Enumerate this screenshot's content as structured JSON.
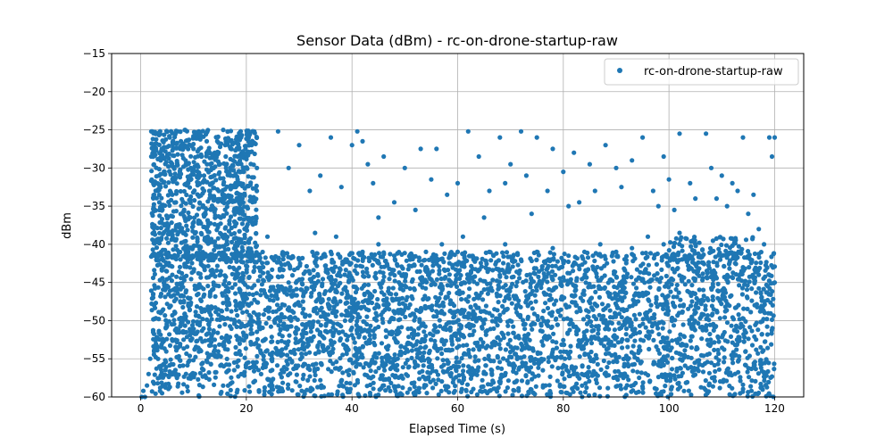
{
  "chart_data": {
    "type": "scatter",
    "title": "Sensor Data (dBm) - rc-on-drone-startup-raw",
    "xlabel": "Elapsed Time (s)",
    "ylabel": "dBm",
    "xlim": [
      -5.5,
      125.5
    ],
    "ylim": [
      -60,
      -15
    ],
    "x_ticks": [
      0,
      20,
      40,
      60,
      80,
      100,
      120
    ],
    "y_ticks": [
      -60,
      -55,
      -50,
      -45,
      -40,
      -35,
      -30,
      -25,
      -20,
      -15
    ],
    "x_tick_labels": [
      "0",
      "20",
      "40",
      "60",
      "80",
      "100",
      "120"
    ],
    "y_tick_labels": [
      "−60",
      "−55",
      "−50",
      "−45",
      "−40",
      "−35",
      "−30",
      "−25",
      "−20",
      "−15"
    ],
    "grid": true,
    "legend": {
      "position": "top-right",
      "entries": [
        "rc-on-drone-startup-raw"
      ]
    },
    "series": [
      {
        "name": "rc-on-drone-startup-raw",
        "color": "#1f77b4",
        "points": [
          [
            0.2,
            -60
          ],
          [
            0.5,
            -59.2
          ],
          [
            0.8,
            -60
          ],
          [
            1.2,
            -58.5
          ],
          [
            1.5,
            -57
          ],
          [
            1.8,
            -55
          ],
          [
            2.0,
            -25.2
          ],
          [
            2.2,
            -25.2
          ],
          [
            2.5,
            -27.2
          ],
          [
            2.8,
            -26.8
          ],
          [
            3.2,
            -33
          ],
          [
            3.5,
            -31
          ],
          [
            3.8,
            -29
          ],
          [
            4.0,
            -27.5
          ],
          [
            4.5,
            -30.5
          ],
          [
            5.0,
            -28.5
          ],
          [
            5.5,
            -26
          ],
          [
            6.0,
            -33.5
          ],
          [
            6.5,
            -31.5
          ],
          [
            7.0,
            -25.2
          ],
          [
            7.5,
            -27.5
          ],
          [
            8.0,
            -26.8
          ],
          [
            8.5,
            -29
          ],
          [
            9.0,
            -32
          ],
          [
            9.5,
            -30
          ],
          [
            10.0,
            -27.5
          ],
          [
            10.5,
            -26
          ],
          [
            11.0,
            -25.2
          ],
          [
            11.5,
            -28.5
          ],
          [
            12.0,
            -31
          ],
          [
            12.5,
            -26.5
          ],
          [
            13.0,
            -33
          ],
          [
            13.5,
            -30
          ],
          [
            14.0,
            -28
          ],
          [
            14.5,
            -26.5
          ],
          [
            15.0,
            -29.5
          ],
          [
            15.5,
            -34
          ],
          [
            16.0,
            -27
          ],
          [
            16.5,
            -25.2
          ],
          [
            17.0,
            -31
          ],
          [
            17.5,
            -29
          ],
          [
            18.0,
            -32.5
          ],
          [
            18.5,
            -27.5
          ],
          [
            19.0,
            -26
          ],
          [
            19.5,
            -30.5
          ],
          [
            20.0,
            -28.5
          ],
          [
            20.5,
            -25.8
          ],
          [
            21.0,
            -27
          ],
          [
            21.5,
            -25.2
          ],
          [
            22.0,
            -30
          ],
          [
            26.0,
            -25.2
          ],
          [
            28.0,
            -30
          ],
          [
            30.0,
            -27
          ],
          [
            32.0,
            -33
          ],
          [
            34.0,
            -31
          ],
          [
            36.0,
            -26
          ],
          [
            37.0,
            -39
          ],
          [
            38.0,
            -32.5
          ],
          [
            40.0,
            -27
          ],
          [
            41.0,
            -25.2
          ],
          [
            42.0,
            -26.5
          ],
          [
            43.0,
            -29.5
          ],
          [
            44.0,
            -32
          ],
          [
            45.0,
            -36.5
          ],
          [
            46.0,
            -28.5
          ],
          [
            48.0,
            -34.5
          ],
          [
            50.0,
            -30
          ],
          [
            52.0,
            -35.5
          ],
          [
            53.0,
            -27.5
          ],
          [
            55.0,
            -31.5
          ],
          [
            56.0,
            -27.5
          ],
          [
            58.0,
            -33.5
          ],
          [
            60.0,
            -32
          ],
          [
            61.0,
            -39
          ],
          [
            62.0,
            -25.2
          ],
          [
            64.0,
            -28.5
          ],
          [
            65.0,
            -36.5
          ],
          [
            66.0,
            -33
          ],
          [
            68.0,
            -26
          ],
          [
            69.0,
            -32
          ],
          [
            70.0,
            -29.5
          ],
          [
            72.0,
            -25.2
          ],
          [
            73.0,
            -31
          ],
          [
            74.0,
            -36
          ],
          [
            75.0,
            -26
          ],
          [
            77.0,
            -33
          ],
          [
            78.0,
            -27.5
          ],
          [
            80.0,
            -30.5
          ],
          [
            81.0,
            -35
          ],
          [
            82.0,
            -28
          ],
          [
            83.0,
            -34.5
          ],
          [
            85.0,
            -29.5
          ],
          [
            86.0,
            -33
          ],
          [
            88.0,
            -27
          ],
          [
            90.0,
            -30
          ],
          [
            91.0,
            -32.5
          ],
          [
            93.0,
            -29
          ],
          [
            95.0,
            -26
          ],
          [
            97.0,
            -33
          ],
          [
            98.0,
            -35
          ],
          [
            99.0,
            -28.5
          ],
          [
            100.0,
            -31.5
          ],
          [
            101.0,
            -35.5
          ],
          [
            102.0,
            -25.5
          ],
          [
            104.0,
            -32
          ],
          [
            105.0,
            -34
          ],
          [
            107.0,
            -25.5
          ],
          [
            108.0,
            -30
          ],
          [
            109.0,
            -34
          ],
          [
            110.0,
            -31
          ],
          [
            111.0,
            -35
          ],
          [
            112.0,
            -32
          ],
          [
            113.0,
            -33
          ],
          [
            114.0,
            -26
          ],
          [
            115.0,
            -36
          ],
          [
            116.0,
            -33.5
          ],
          [
            117.0,
            -38
          ],
          [
            118.0,
            -40
          ],
          [
            119.0,
            -26
          ],
          [
            119.5,
            -28.5
          ],
          [
            120.0,
            -26
          ],
          [
            3.0,
            -42
          ],
          [
            6.0,
            -44
          ],
          [
            9.0,
            -41
          ],
          [
            12.0,
            -43
          ],
          [
            15.0,
            -42
          ],
          [
            18.0,
            -44
          ],
          [
            21.0,
            -41
          ],
          [
            24.0,
            -39
          ],
          [
            27.0,
            -41.5
          ],
          [
            30.0,
            -42
          ],
          [
            33.0,
            -38.5
          ],
          [
            36.0,
            -41
          ],
          [
            39.0,
            -42
          ],
          [
            42.0,
            -41
          ],
          [
            45.0,
            -40
          ],
          [
            48.0,
            -41.5
          ],
          [
            51.0,
            -42
          ],
          [
            54.0,
            -41
          ],
          [
            57.0,
            -40
          ],
          [
            60.0,
            -41
          ],
          [
            63.0,
            -42
          ],
          [
            66.0,
            -41
          ],
          [
            69.0,
            -40
          ],
          [
            72.0,
            -42
          ],
          [
            75.0,
            -41
          ],
          [
            78.0,
            -40.5
          ],
          [
            81.0,
            -41.5
          ],
          [
            84.0,
            -41
          ],
          [
            87.0,
            -40
          ],
          [
            90.0,
            -41
          ],
          [
            93.0,
            -40.5
          ],
          [
            96.0,
            -39
          ],
          [
            99.0,
            -40
          ],
          [
            102.0,
            -38.5
          ],
          [
            105.0,
            -40
          ],
          [
            108.0,
            -41
          ],
          [
            111.0,
            -41.5
          ],
          [
            114.0,
            -43
          ],
          [
            117.0,
            -44
          ],
          [
            120.0,
            -45
          ]
        ]
      }
    ]
  }
}
